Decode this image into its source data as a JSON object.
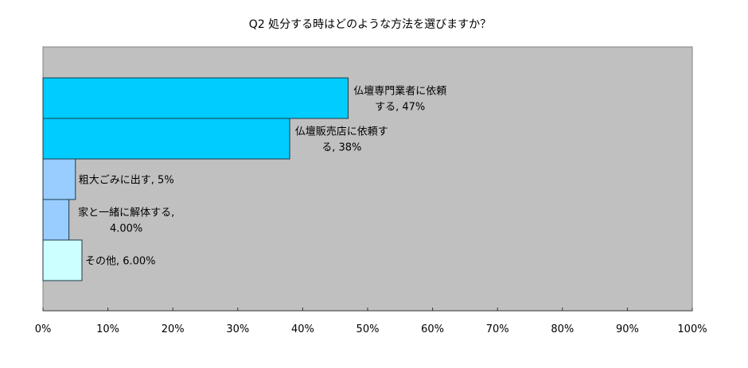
{
  "chart_data": {
    "type": "bar",
    "orientation": "horizontal",
    "title": "Q2  処分する時はどのような方法を選びますか？",
    "categories": [
      "仏壇専門業者に依頼する",
      "仏壇販売店に依頼する",
      "粗大ごみに出す",
      "家と一緒に解体する",
      "その他"
    ],
    "values": [
      47,
      38,
      5,
      4,
      6
    ],
    "data_labels": [
      [
        "仏壇専門業者に依頼",
        "する, 47%"
      ],
      [
        "仏壇販売店に依頼す",
        "る, 38%"
      ],
      [
        "粗大ごみに出す, 5%"
      ],
      [
        "家と一緒に解体する,",
        "4.00%"
      ],
      [
        "その他, 6.00%"
      ]
    ],
    "colors": [
      "#00ccff",
      "#00ccff",
      "#99ccff",
      "#99ccff",
      "#ccffff"
    ],
    "xlim": [
      0,
      100
    ],
    "xticks": [
      "0%",
      "10%",
      "20%",
      "30%",
      "40%",
      "50%",
      "60%",
      "70%",
      "80%",
      "90%",
      "100%"
    ],
    "plot_background": "#c0c0c0",
    "grid": false,
    "legend": "none"
  }
}
